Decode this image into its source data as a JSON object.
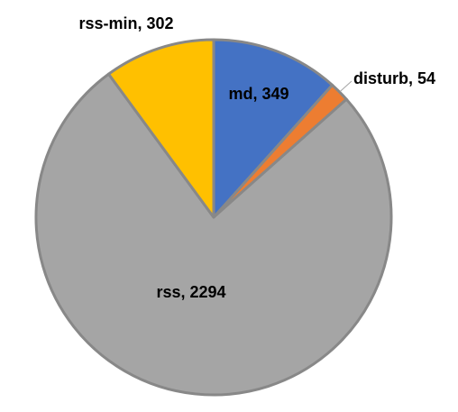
{
  "chart_data": {
    "type": "pie",
    "title": "",
    "slices": [
      {
        "label": "md",
        "value": 349,
        "color": "#4472c4",
        "text_color": "#ffffff",
        "text": "md, 349"
      },
      {
        "label": "disturb",
        "value": 54,
        "color": "#ed7d31",
        "text_color": "#ed7d31",
        "text": "disturb, 54"
      },
      {
        "label": "rss",
        "value": 2294,
        "color": "#a5a5a5",
        "text_color": "#ffffff",
        "text": "rss, 2294"
      },
      {
        "label": "rss-min",
        "value": 302,
        "color": "#ffc000",
        "text_color": "#ffc000",
        "text": "rss-min, 302"
      }
    ],
    "start_angle": "12 o'clock",
    "direction": "clockwise",
    "legend": "none"
  }
}
